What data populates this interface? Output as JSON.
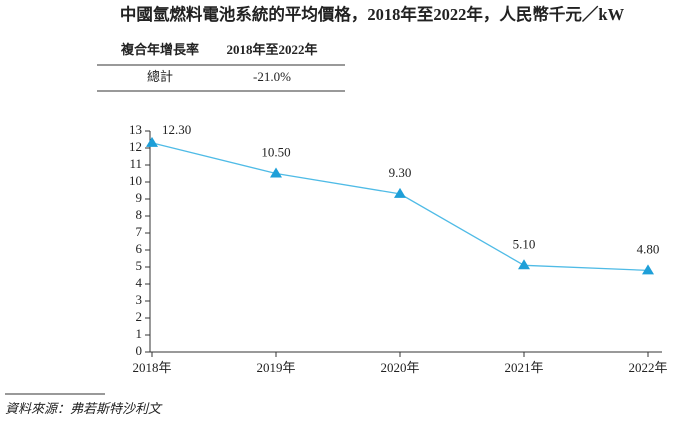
{
  "chart_data": {
    "type": "line",
    "title": "中國氫燃料電池系統的平均價格，2018年至2022年，人民幣千元／kW",
    "categories": [
      "2018年",
      "2019年",
      "2020年",
      "2021年",
      "2022年"
    ],
    "values": [
      12.3,
      10.5,
      9.3,
      5.1,
      4.8
    ],
    "value_labels": [
      "12.30",
      "10.50",
      "9.30",
      "5.10",
      "4.80"
    ],
    "color": "#4fbbe6",
    "marker_color": "#1e9fd8",
    "ylim": [
      0,
      13
    ],
    "yticks": [
      0,
      1,
      2,
      3,
      4,
      5,
      6,
      7,
      8,
      9,
      10,
      11,
      12,
      13
    ]
  },
  "table": {
    "header": [
      "複合年增長率",
      "2018年至2022年"
    ],
    "rows": [
      [
        "總計",
        "-21.0%"
      ]
    ]
  },
  "source": "資料來源：弗若斯特沙利文"
}
